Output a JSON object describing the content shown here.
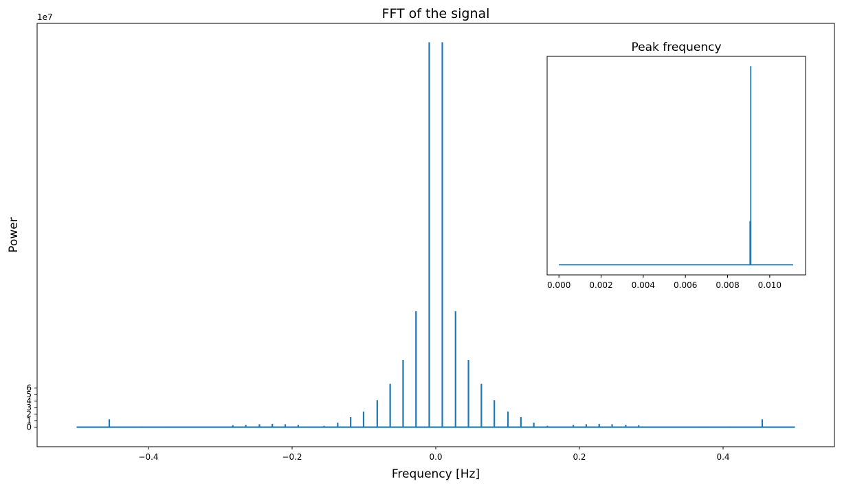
{
  "chart_data": [
    {
      "type": "line",
      "title": "FFT of the signal",
      "xlabel": "Frequency [Hz]",
      "ylabel": "Power",
      "offset_text": "1e7",
      "xlim": [
        -0.555,
        0.555
      ],
      "ylim": [
        -3.0,
        62.0
      ],
      "xticks": [
        -0.4,
        -0.2,
        0.0,
        0.2,
        0.4
      ],
      "xtick_labels": [
        "−0.4",
        "−0.2",
        "0.0",
        "0.2",
        "0.4"
      ],
      "yticks": [
        0,
        1,
        2,
        3,
        4,
        5,
        6
      ],
      "ytick_labels": [
        "0",
        "1",
        "2",
        "3",
        "4",
        "5",
        "6"
      ],
      "line_color": "#1f77b4",
      "grid": false,
      "x_range": [
        -0.5,
        0.5
      ],
      "baseline": 0.0,
      "peaks": [
        {
          "x": -0.4545,
          "y": 1.2
        },
        {
          "x": -0.4095,
          "y": 0.12
        },
        {
          "x": -0.3735,
          "y": 0.1
        },
        {
          "x": -0.2825,
          "y": 0.3
        },
        {
          "x": -0.2645,
          "y": 0.35
        },
        {
          "x": -0.2455,
          "y": 0.45
        },
        {
          "x": -0.2275,
          "y": 0.5
        },
        {
          "x": -0.2095,
          "y": 0.45
        },
        {
          "x": -0.1915,
          "y": 0.35
        },
        {
          "x": -0.1555,
          "y": 0.2
        },
        {
          "x": -0.1365,
          "y": 0.7
        },
        {
          "x": -0.1185,
          "y": 1.55
        },
        {
          "x": -0.1005,
          "y": 2.4
        },
        {
          "x": -0.0815,
          "y": 4.15
        },
        {
          "x": -0.0635,
          "y": 6.65
        },
        {
          "x": -0.0455,
          "y": 10.3
        },
        {
          "x": -0.0275,
          "y": 17.8
        },
        {
          "x": -0.0091,
          "y": 59.1
        },
        {
          "x": 0.0091,
          "y": 59.1
        },
        {
          "x": 0.0275,
          "y": 17.8
        },
        {
          "x": 0.0455,
          "y": 10.3
        },
        {
          "x": 0.0635,
          "y": 6.65
        },
        {
          "x": 0.0815,
          "y": 4.15
        },
        {
          "x": 0.1005,
          "y": 2.4
        },
        {
          "x": 0.1185,
          "y": 1.55
        },
        {
          "x": 0.1365,
          "y": 0.7
        },
        {
          "x": 0.1555,
          "y": 0.2
        },
        {
          "x": 0.1915,
          "y": 0.35
        },
        {
          "x": 0.2095,
          "y": 0.45
        },
        {
          "x": 0.2275,
          "y": 0.5
        },
        {
          "x": 0.2455,
          "y": 0.45
        },
        {
          "x": 0.2645,
          "y": 0.35
        },
        {
          "x": 0.2825,
          "y": 0.3
        },
        {
          "x": 0.3735,
          "y": 0.1
        },
        {
          "x": 0.4095,
          "y": 0.12
        },
        {
          "x": 0.4545,
          "y": 1.2
        }
      ]
    },
    {
      "type": "line",
      "title": "Peak frequency",
      "xlim": [
        -0.00056,
        0.0117
      ],
      "ylim": [
        -3.0,
        62.0
      ],
      "xticks": [
        0.0,
        0.002,
        0.004,
        0.006,
        0.008,
        0.01
      ],
      "xtick_labels": [
        "0.000",
        "0.002",
        "0.004",
        "0.006",
        "0.008",
        "0.010"
      ],
      "yticks_visible": false,
      "line_color": "#1f77b4",
      "x_range": [
        0.0,
        0.01111
      ],
      "baseline": 0.0,
      "peak": {
        "x": 0.0091,
        "y": 59.1
      },
      "secondary_peak": {
        "x": 0.0091,
        "y": 13.0
      }
    }
  ]
}
